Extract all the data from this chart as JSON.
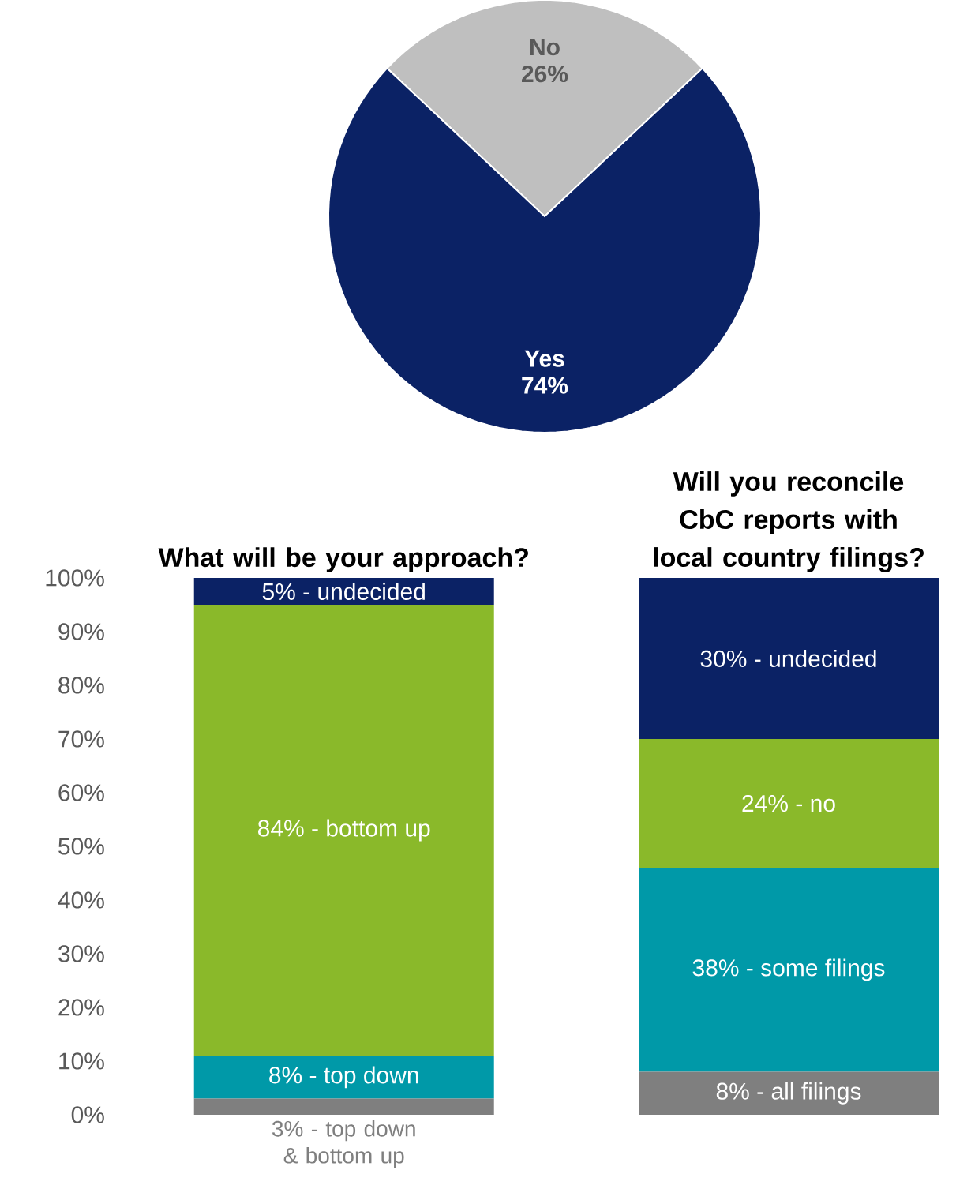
{
  "chart_data": [
    {
      "type": "pie",
      "categories": [
        "No",
        "Yes"
      ],
      "values": [
        26,
        74
      ],
      "colors": [
        "#bfbfbf",
        "#0b2265"
      ],
      "value_labels": [
        "26%",
        "74%"
      ],
      "data_labels": true
    },
    {
      "type": "bar",
      "stacked": true,
      "categories": [
        "What will be your approach?",
        "Will you reconcile CbC reports with local country filings?"
      ],
      "ylim": [
        0,
        100
      ],
      "yticks": [
        {
          "value": 0,
          "label": "0%"
        },
        {
          "value": 10,
          "label": "10%"
        },
        {
          "value": 20,
          "label": "20%"
        },
        {
          "value": 30,
          "label": "30%"
        },
        {
          "value": 40,
          "label": "40%"
        },
        {
          "value": 50,
          "label": "50%"
        },
        {
          "value": 60,
          "label": "60%"
        },
        {
          "value": 70,
          "label": "70%"
        },
        {
          "value": 80,
          "label": "80%"
        },
        {
          "value": 90,
          "label": "90%"
        },
        {
          "value": 100,
          "label": "100%"
        }
      ],
      "series": [
        {
          "color": "#7f7f7f",
          "values": [
            3,
            8
          ],
          "value_labels": [
            "3% - top down & bottom up",
            "8% - all filings"
          ]
        },
        {
          "color": "#0099a8",
          "values": [
            8,
            38
          ],
          "value_labels": [
            "8% - top down",
            "38% - some filings"
          ]
        },
        {
          "color": "#8ab92a",
          "values": [
            84,
            24
          ],
          "value_labels": [
            "84% - bottom up",
            "24% - no"
          ]
        },
        {
          "color": "#0b2265",
          "values": [
            5,
            30
          ],
          "value_labels": [
            "5% - undecided",
            "30% - undecided"
          ]
        }
      ]
    }
  ]
}
